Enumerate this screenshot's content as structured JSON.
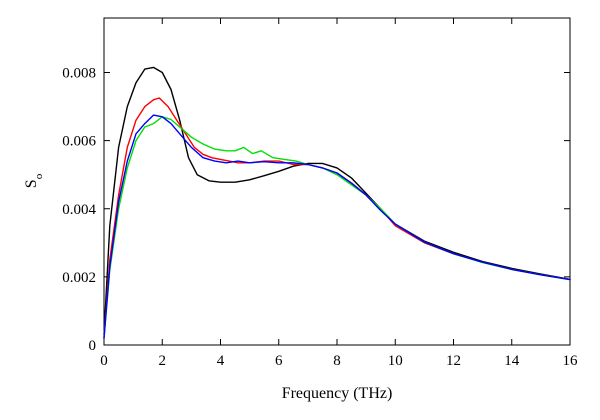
{
  "chart_data": {
    "type": "line",
    "title": "",
    "xlabel": "Frequency (THz)",
    "ylabel": "S",
    "ylabel_subscript": "o",
    "xlim": [
      0,
      16
    ],
    "ylim": [
      0,
      0.0096
    ],
    "x_ticks": [
      0,
      2,
      4,
      6,
      8,
      10,
      12,
      14,
      16
    ],
    "x_tick_labels": [
      "0",
      "2",
      "4",
      "6",
      "8",
      "10",
      "12",
      "14",
      "16"
    ],
    "y_ticks": [
      0,
      0.002,
      0.004,
      0.006,
      0.008
    ],
    "y_tick_labels": [
      "0",
      "0.002",
      "0.004",
      "0.006",
      "0.008"
    ],
    "grid": false,
    "legend": "none",
    "series": [
      {
        "color": "#000000",
        "points": [
          [
            0,
            0.0003
          ],
          [
            0.2,
            0.0035
          ],
          [
            0.5,
            0.0058
          ],
          [
            0.8,
            0.007
          ],
          [
            1.1,
            0.0077
          ],
          [
            1.4,
            0.0081
          ],
          [
            1.7,
            0.00815
          ],
          [
            2.0,
            0.008
          ],
          [
            2.3,
            0.0075
          ],
          [
            2.6,
            0.0066
          ],
          [
            2.9,
            0.0055
          ],
          [
            3.2,
            0.005
          ],
          [
            3.6,
            0.00482
          ],
          [
            4.0,
            0.00478
          ],
          [
            4.5,
            0.00478
          ],
          [
            5.0,
            0.00485
          ],
          [
            5.5,
            0.00497
          ],
          [
            6.0,
            0.0051
          ],
          [
            6.5,
            0.00525
          ],
          [
            7.0,
            0.00533
          ],
          [
            7.5,
            0.00533
          ],
          [
            8.0,
            0.0052
          ],
          [
            8.5,
            0.0049
          ],
          [
            9.0,
            0.00445
          ],
          [
            9.5,
            0.004
          ],
          [
            10,
            0.00355
          ],
          [
            11,
            0.00305
          ],
          [
            12,
            0.00272
          ],
          [
            13,
            0.00245
          ],
          [
            14,
            0.00225
          ],
          [
            15,
            0.00208
          ],
          [
            16,
            0.00193
          ]
        ]
      },
      {
        "color": "#ff0000",
        "points": [
          [
            0,
            0.0002
          ],
          [
            0.2,
            0.0025
          ],
          [
            0.5,
            0.0044
          ],
          [
            0.8,
            0.0058
          ],
          [
            1.1,
            0.0066
          ],
          [
            1.4,
            0.007
          ],
          [
            1.7,
            0.0072
          ],
          [
            1.9,
            0.00725
          ],
          [
            2.2,
            0.007
          ],
          [
            2.5,
            0.0066
          ],
          [
            2.8,
            0.0062
          ],
          [
            3.1,
            0.0058
          ],
          [
            3.4,
            0.0056
          ],
          [
            3.7,
            0.0055
          ],
          [
            4.0,
            0.00545
          ],
          [
            4.3,
            0.0054
          ],
          [
            4.6,
            0.00535
          ],
          [
            5.0,
            0.00535
          ],
          [
            5.5,
            0.0054
          ],
          [
            6.0,
            0.0054
          ],
          [
            6.5,
            0.0053
          ],
          [
            7.0,
            0.0053
          ],
          [
            7.5,
            0.0052
          ],
          [
            8.0,
            0.00505
          ],
          [
            8.5,
            0.00475
          ],
          [
            9.0,
            0.0044
          ],
          [
            9.5,
            0.004
          ],
          [
            10,
            0.0035
          ],
          [
            11,
            0.003
          ],
          [
            12,
            0.00268
          ],
          [
            13,
            0.00243
          ],
          [
            14,
            0.00222
          ],
          [
            15,
            0.00206
          ],
          [
            16,
            0.00192
          ]
        ]
      },
      {
        "color": "#00e000",
        "points": [
          [
            0,
            0.0002
          ],
          [
            0.2,
            0.0022
          ],
          [
            0.5,
            0.004
          ],
          [
            0.8,
            0.0052
          ],
          [
            1.1,
            0.006
          ],
          [
            1.4,
            0.0064
          ],
          [
            1.7,
            0.0065
          ],
          [
            2.0,
            0.0067
          ],
          [
            2.3,
            0.00662
          ],
          [
            2.6,
            0.0064
          ],
          [
            3.0,
            0.0061
          ],
          [
            3.4,
            0.0059
          ],
          [
            3.8,
            0.00575
          ],
          [
            4.2,
            0.0057
          ],
          [
            4.5,
            0.0057
          ],
          [
            4.8,
            0.0058
          ],
          [
            5.1,
            0.00562
          ],
          [
            5.4,
            0.0057
          ],
          [
            5.8,
            0.0055
          ],
          [
            6.2,
            0.00545
          ],
          [
            6.6,
            0.0054
          ],
          [
            7.0,
            0.0053
          ],
          [
            7.5,
            0.0052
          ],
          [
            8.0,
            0.005
          ],
          [
            8.5,
            0.0047
          ],
          [
            9.0,
            0.0044
          ],
          [
            9.5,
            0.004
          ],
          [
            10,
            0.00355
          ],
          [
            11,
            0.00302
          ],
          [
            12,
            0.00268
          ],
          [
            13,
            0.00242
          ],
          [
            14,
            0.00222
          ],
          [
            15,
            0.00206
          ],
          [
            16,
            0.00192
          ]
        ]
      },
      {
        "color": "#0000ff",
        "points": [
          [
            0,
            0.0002
          ],
          [
            0.2,
            0.0023
          ],
          [
            0.5,
            0.0042
          ],
          [
            0.8,
            0.0054
          ],
          [
            1.1,
            0.0062
          ],
          [
            1.4,
            0.0065
          ],
          [
            1.7,
            0.00675
          ],
          [
            2.0,
            0.0067
          ],
          [
            2.3,
            0.0065
          ],
          [
            2.6,
            0.0062
          ],
          [
            3.0,
            0.0058
          ],
          [
            3.4,
            0.0055
          ],
          [
            3.8,
            0.0054
          ],
          [
            4.2,
            0.00535
          ],
          [
            4.6,
            0.0054
          ],
          [
            5.0,
            0.00535
          ],
          [
            5.5,
            0.00538
          ],
          [
            6.0,
            0.00535
          ],
          [
            6.5,
            0.00535
          ],
          [
            7.0,
            0.0053
          ],
          [
            7.5,
            0.0052
          ],
          [
            8.0,
            0.00505
          ],
          [
            8.5,
            0.00475
          ],
          [
            9.0,
            0.0044
          ],
          [
            9.5,
            0.00395
          ],
          [
            10,
            0.00355
          ],
          [
            11,
            0.00302
          ],
          [
            12,
            0.00268
          ],
          [
            13,
            0.00243
          ],
          [
            14,
            0.00222
          ],
          [
            15,
            0.00206
          ],
          [
            16,
            0.00192
          ]
        ]
      }
    ]
  }
}
